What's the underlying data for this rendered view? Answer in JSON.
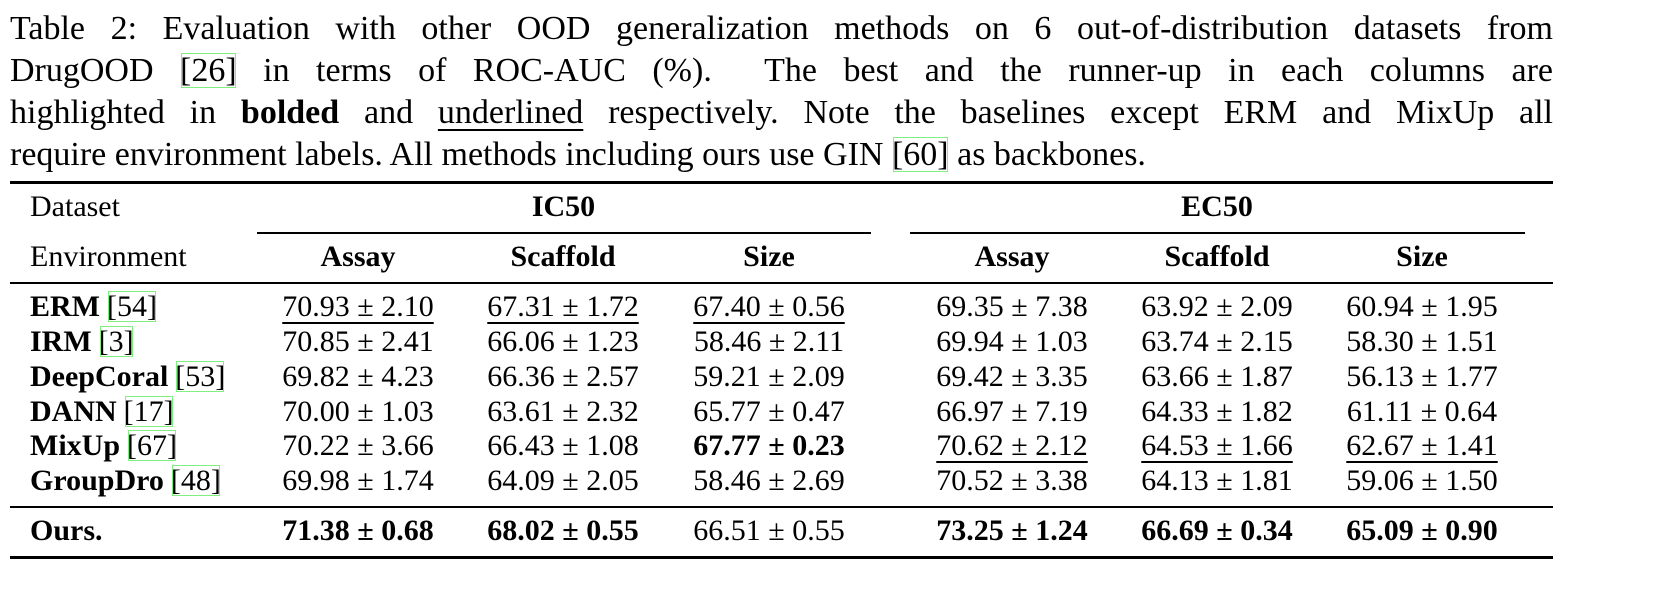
{
  "caption": [
    [
      {
        "text": "Table 2: Evaluation with other OOD generalization methods on 6 out-of-distribution datasets from"
      }
    ],
    [
      {
        "text": "DrugOOD "
      },
      {
        "text": "[26]",
        "style": "cite"
      },
      {
        "text": " in terms of ROC-AUC (%).  The best and the runner-up in each columns are"
      }
    ],
    [
      {
        "text": "highlighted in "
      },
      {
        "text": "bolded",
        "style": "bold"
      },
      {
        "text": " and "
      },
      {
        "text": "underlined",
        "style": "underline"
      },
      {
        "text": " respectively. Note the baselines except ERM and MixUp all"
      }
    ],
    [
      {
        "text": "require environment labels. All methods including ours use GIN "
      },
      {
        "text": "[60]",
        "style": "cite"
      },
      {
        "text": " as backbones."
      }
    ]
  ],
  "table": {
    "header": {
      "dataset_label": "Dataset",
      "environment_label": "Environment",
      "groups": [
        {
          "name": "IC50",
          "columns": [
            "Assay",
            "Scaffold",
            "Size"
          ]
        },
        {
          "name": "EC50",
          "columns": [
            "Assay",
            "Scaffold",
            "Size"
          ]
        }
      ]
    },
    "rows": [
      {
        "method": "ERM",
        "ref": "[54]",
        "cells": [
          {
            "text": "70.93 ± 2.10",
            "style": "underline"
          },
          {
            "text": "67.31 ± 1.72",
            "style": "underline"
          },
          {
            "text": "67.40 ± 0.56",
            "style": "underline"
          },
          {
            "text": "69.35 ± 7.38"
          },
          {
            "text": "63.92 ± 2.09"
          },
          {
            "text": "60.94 ± 1.95"
          }
        ]
      },
      {
        "method": "IRM",
        "ref": "[3]",
        "cells": [
          {
            "text": "70.85 ± 2.41"
          },
          {
            "text": "66.06 ± 1.23"
          },
          {
            "text": "58.46 ± 2.11"
          },
          {
            "text": "69.94 ± 1.03"
          },
          {
            "text": "63.74 ± 2.15"
          },
          {
            "text": "58.30 ± 1.51"
          }
        ]
      },
      {
        "method": "DeepCoral",
        "ref": "[53]",
        "cells": [
          {
            "text": "69.82 ± 4.23"
          },
          {
            "text": "66.36 ± 2.57"
          },
          {
            "text": "59.21 ± 2.09"
          },
          {
            "text": "69.42 ± 3.35"
          },
          {
            "text": "63.66 ± 1.87"
          },
          {
            "text": "56.13 ± 1.77"
          }
        ]
      },
      {
        "method": "DANN",
        "ref": "[17]",
        "cells": [
          {
            "text": "70.00 ± 1.03"
          },
          {
            "text": "63.61 ± 2.32"
          },
          {
            "text": "65.77 ± 0.47"
          },
          {
            "text": "66.97 ± 7.19"
          },
          {
            "text": "64.33 ± 1.82"
          },
          {
            "text": "61.11 ± 0.64"
          }
        ]
      },
      {
        "method": "MixUp",
        "ref": "[67]",
        "cells": [
          {
            "text": "70.22 ± 3.66"
          },
          {
            "text": "66.43 ± 1.08"
          },
          {
            "text": "67.77 ± 0.23",
            "style": "bold"
          },
          {
            "text": "70.62 ± 2.12",
            "style": "underline"
          },
          {
            "text": "64.53 ± 1.66",
            "style": "underline"
          },
          {
            "text": "62.67 ± 1.41",
            "style": "underline"
          }
        ]
      },
      {
        "method": "GroupDro",
        "ref": "[48]",
        "cells": [
          {
            "text": "69.98 ± 1.74"
          },
          {
            "text": "64.09 ± 2.05"
          },
          {
            "text": "58.46 ± 2.69"
          },
          {
            "text": "70.52 ± 3.38"
          },
          {
            "text": "64.13 ± 1.81"
          },
          {
            "text": "59.06 ± 1.50"
          }
        ]
      }
    ],
    "proposed": {
      "method": "Ours.",
      "cells": [
        {
          "text": "71.38 ± 0.68",
          "style": "bold"
        },
        {
          "text": "68.02 ± 0.55",
          "style": "bold"
        },
        {
          "text": "66.51 ± 0.55"
        },
        {
          "text": "73.25 ± 1.24",
          "style": "bold"
        },
        {
          "text": "66.69 ± 0.34",
          "style": "bold"
        },
        {
          "text": "65.09 ± 0.90",
          "style": "bold"
        }
      ]
    }
  }
}
